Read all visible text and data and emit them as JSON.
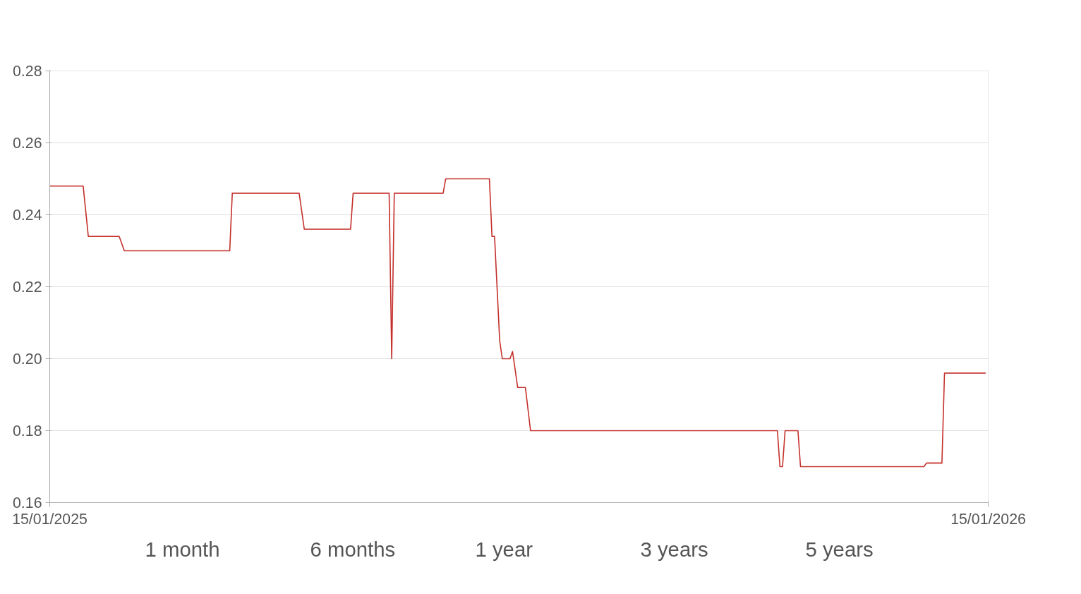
{
  "chart_data": {
    "type": "line",
    "x": [
      "2025-01-15",
      "2025-01-28",
      "2025-01-30",
      "2025-02-11",
      "2025-02-13",
      "2025-03-26",
      "2025-03-27",
      "2025-04-22",
      "2025-04-24",
      "2025-05-12",
      "2025-05-13",
      "2025-05-27",
      "2025-05-28",
      "2025-05-29",
      "2025-06-17",
      "2025-06-18",
      "2025-07-05",
      "2025-07-06",
      "2025-07-07",
      "2025-07-09",
      "2025-07-10",
      "2025-07-13",
      "2025-07-14",
      "2025-07-16",
      "2025-07-19",
      "2025-07-21",
      "2025-10-25",
      "2025-10-26",
      "2025-10-27",
      "2025-10-28",
      "2025-11-02",
      "2025-11-03",
      "2025-12-21",
      "2025-12-22",
      "2025-12-28",
      "2025-12-29",
      "2026-01-14"
    ],
    "series": [
      {
        "color": "#c4302b",
        "values": [
          0.248,
          0.248,
          0.234,
          0.234,
          0.23,
          0.23,
          0.246,
          0.246,
          0.236,
          0.236,
          0.246,
          0.246,
          0.2,
          0.246,
          0.246,
          0.25,
          0.25,
          0.234,
          0.234,
          0.205,
          0.2,
          0.2,
          0.202,
          0.192,
          0.192,
          0.18,
          0.18,
          0.17,
          0.17,
          0.18,
          0.18,
          0.17,
          0.17,
          0.171,
          0.171,
          0.196,
          0.196
        ]
      }
    ],
    "xlim": [
      "2025-01-15",
      "2026-01-15"
    ],
    "xticks": [
      {
        "value": "2025-01-15",
        "label": "15/01/2025"
      },
      {
        "value": "2026-01-15",
        "label": "15/01/2026"
      }
    ],
    "ylim": [
      0.16,
      0.28
    ],
    "yticks": [
      0.16,
      0.18,
      {
        "value": 0.2,
        "label": "0.20"
      },
      0.22,
      0.24,
      0.26,
      0.28
    ],
    "grid": "y",
    "marker": "none",
    "line_style": "solid",
    "annotations": [
      "1 month",
      "6 months",
      "1 year",
      "3 years",
      "5 years"
    ]
  }
}
